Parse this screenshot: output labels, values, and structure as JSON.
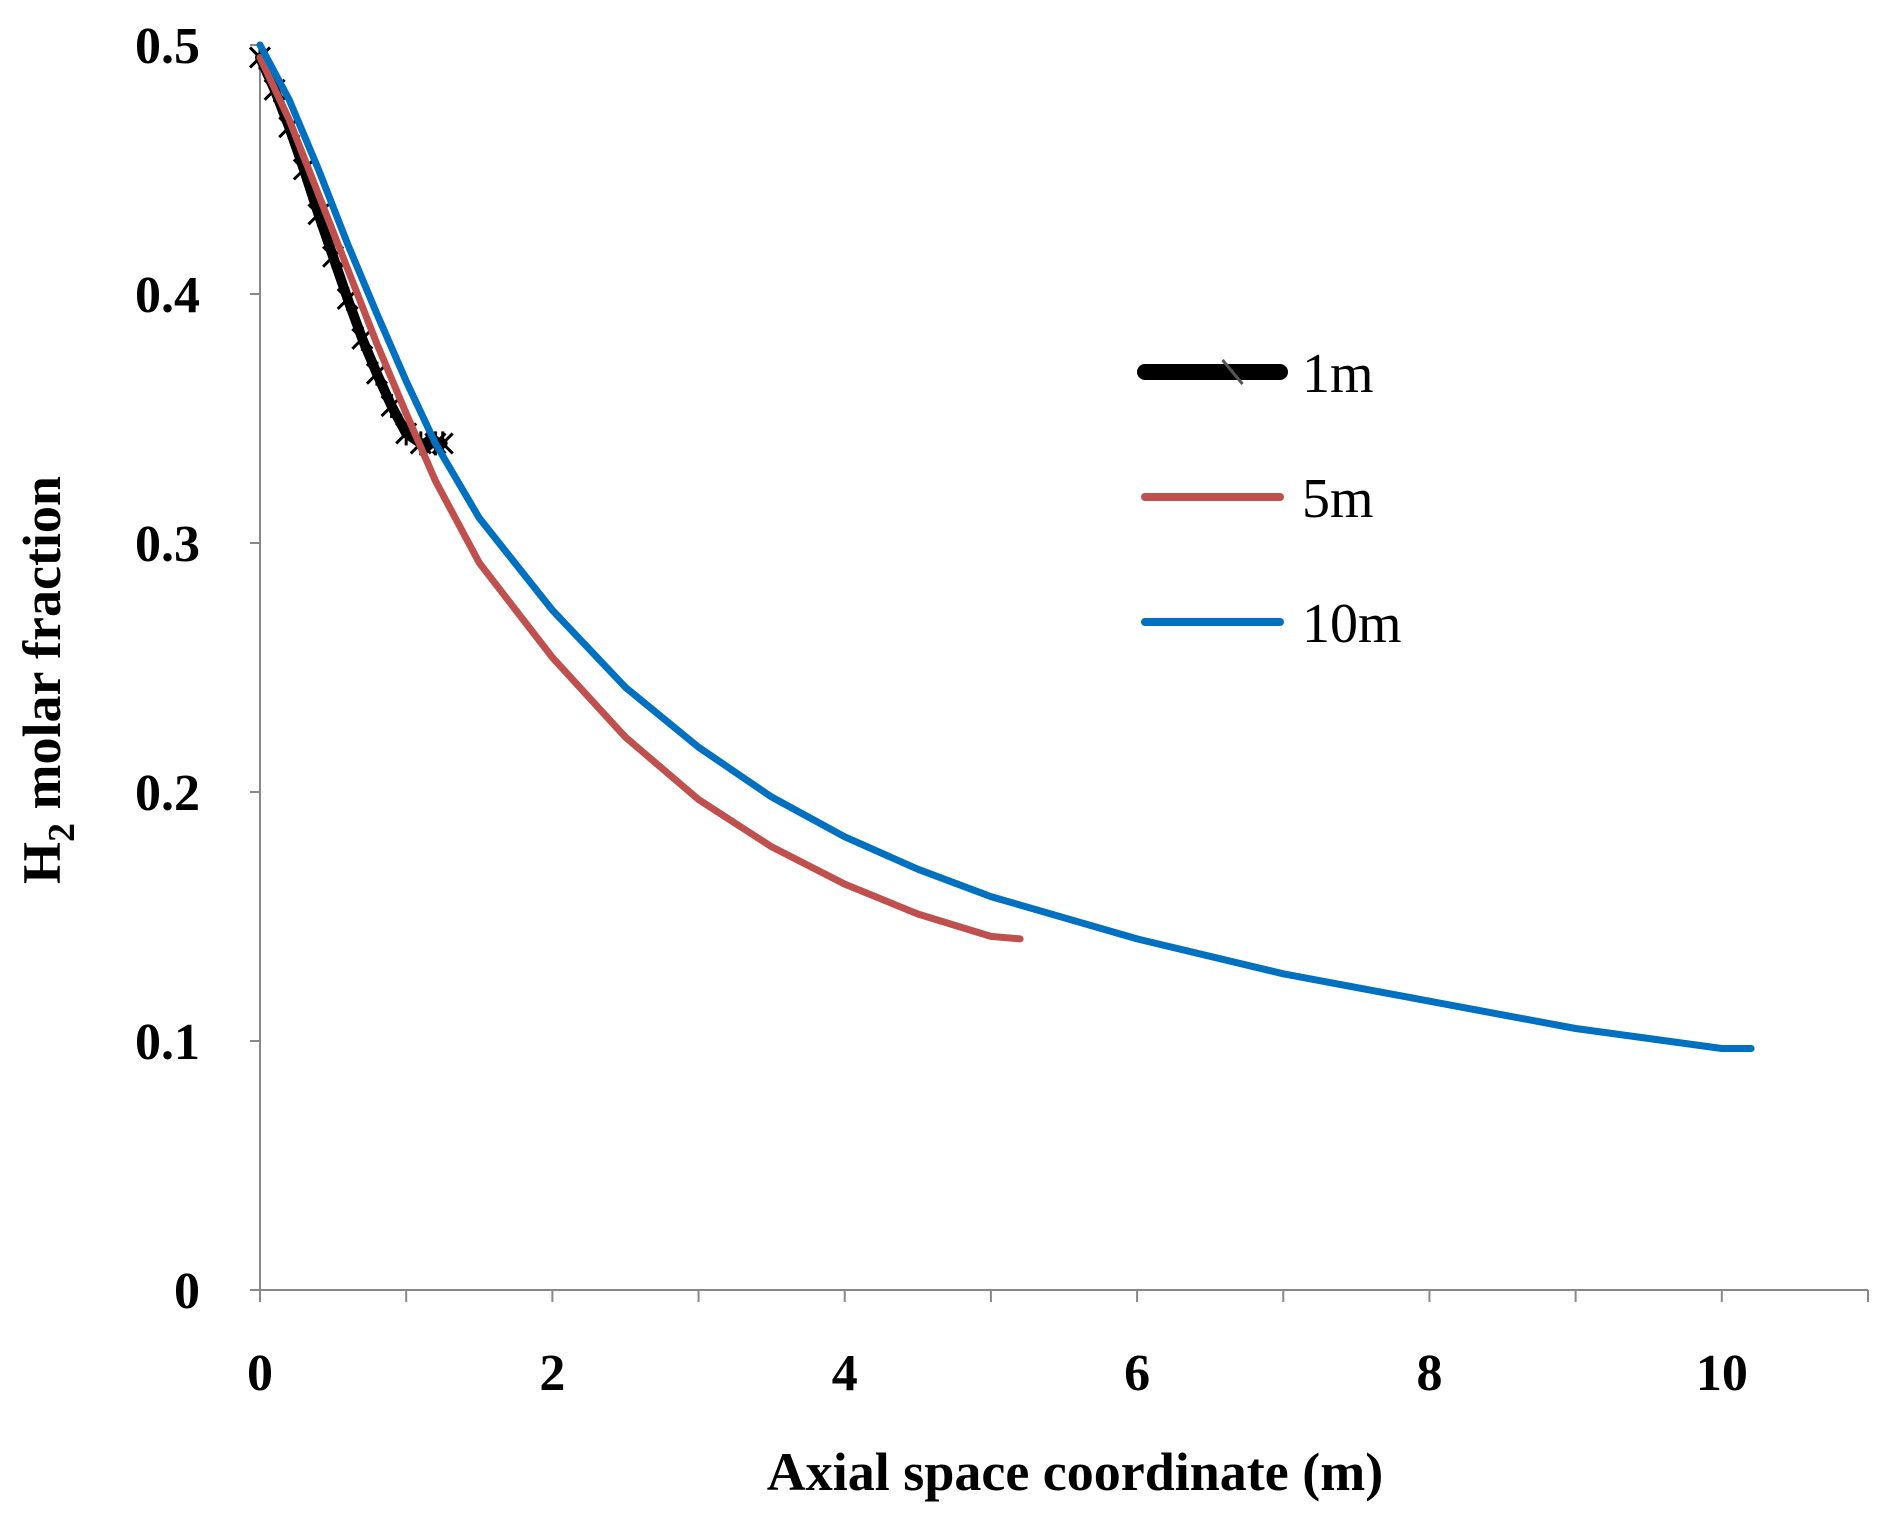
{
  "chart_data": {
    "type": "line",
    "title": "",
    "xlabel": "Axial space coordinate (m)",
    "ylabel": {
      "prefix": "H",
      "subscript": "2",
      "suffix": " molar fraction"
    },
    "xlim": [
      0,
      11
    ],
    "ylim": [
      0,
      0.5
    ],
    "xticks": [
      0,
      2,
      4,
      6,
      8,
      10
    ],
    "yticks": [
      0,
      0.1,
      0.2,
      0.3,
      0.4,
      0.5
    ],
    "x_tick_labels": [
      "0",
      "2",
      "4",
      "6",
      "8",
      "10"
    ],
    "y_tick_labels": [
      "0",
      "0.1",
      "0.2",
      "0.3",
      "0.4",
      "0.5"
    ],
    "grid": false,
    "legend_position": "right",
    "series": [
      {
        "name": "1m",
        "color": "#000000",
        "marker": "star",
        "x": [
          0.0,
          0.1,
          0.2,
          0.3,
          0.4,
          0.5,
          0.6,
          0.7,
          0.8,
          0.9,
          1.0,
          1.1,
          1.2,
          1.25
        ],
        "y": [
          0.495,
          0.482,
          0.467,
          0.45,
          0.432,
          0.415,
          0.398,
          0.382,
          0.368,
          0.355,
          0.344,
          0.34,
          0.34,
          0.34
        ]
      },
      {
        "name": "5m",
        "color": "#C0504D",
        "x": [
          0.0,
          0.2,
          0.4,
          0.6,
          0.8,
          1.0,
          1.2,
          1.5,
          2.0,
          2.5,
          3.0,
          3.5,
          4.0,
          4.5,
          5.0,
          5.2
        ],
        "y": [
          0.495,
          0.47,
          0.44,
          0.41,
          0.38,
          0.352,
          0.325,
          0.292,
          0.254,
          0.222,
          0.197,
          0.178,
          0.163,
          0.151,
          0.142,
          0.141
        ]
      },
      {
        "name": "10m",
        "color": "#0070C0",
        "x": [
          0.0,
          0.2,
          0.4,
          0.6,
          0.8,
          1.0,
          1.2,
          1.5,
          2.0,
          2.5,
          3.0,
          3.5,
          4.0,
          4.5,
          5.0,
          6.0,
          7.0,
          8.0,
          9.0,
          10.0,
          10.2
        ],
        "y": [
          0.5,
          0.478,
          0.45,
          0.42,
          0.392,
          0.365,
          0.34,
          0.31,
          0.273,
          0.242,
          0.218,
          0.198,
          0.182,
          0.169,
          0.158,
          0.141,
          0.127,
          0.116,
          0.105,
          0.097,
          0.097
        ]
      }
    ]
  }
}
